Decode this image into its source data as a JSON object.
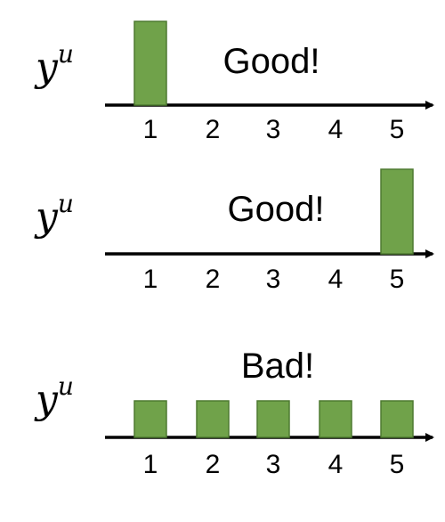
{
  "chart_data": [
    {
      "type": "bar",
      "ylabel": {
        "base": "y",
        "sup": "u"
      },
      "annotation": "Good!",
      "categories": [
        "1",
        "2",
        "3",
        "4",
        "5"
      ],
      "values": [
        1,
        0,
        0,
        0,
        0
      ],
      "color": "#70a24a"
    },
    {
      "type": "bar",
      "ylabel": {
        "base": "y",
        "sup": "u"
      },
      "annotation": "Good!",
      "categories": [
        "1",
        "2",
        "3",
        "4",
        "5"
      ],
      "values": [
        0,
        0,
        0,
        0,
        1
      ],
      "color": "#70a24a"
    },
    {
      "type": "bar",
      "ylabel": {
        "base": "y",
        "sup": "u"
      },
      "annotation": "Bad!",
      "categories": [
        "1",
        "2",
        "3",
        "4",
        "5"
      ],
      "values": [
        0.2,
        0.2,
        0.2,
        0.2,
        0.2
      ],
      "color": "#70a24a"
    }
  ]
}
